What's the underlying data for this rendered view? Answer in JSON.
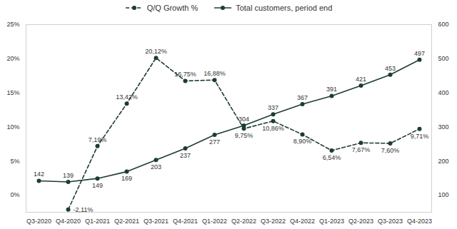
{
  "chart_data": {
    "type": "line",
    "categories": [
      "Q3-2020",
      "Q4-2020",
      "Q1-2021",
      "Q2-2021",
      "Q3-2021",
      "Q4-2021",
      "Q1-2022",
      "Q2-2022",
      "Q3-2022",
      "Q4-2022",
      "Q1-2023",
      "Q2-2023",
      "Q3-2023",
      "Q4-2023"
    ],
    "series": [
      {
        "name": "Q/Q Growth %",
        "color": "#1e3d32",
        "line_style": "dashed",
        "marker": "circle",
        "values": [
          null,
          -2.11,
          7.19,
          13.42,
          20.12,
          16.75,
          16.88,
          9.75,
          10.86,
          8.9,
          6.54,
          7.67,
          7.6,
          9.71
        ],
        "value_labels": [
          null,
          "-2,11%",
          "7,19%",
          "13,42%",
          "20,12%",
          "16,75%",
          "16,88%",
          "9,75%",
          "10,86%",
          "8,90%",
          "6,54%",
          "7,67%",
          "7,60%",
          "9,71%"
        ]
      },
      {
        "name": "Total customers, period end",
        "color": "#1e3d32",
        "line_style": "solid",
        "marker": "circle",
        "axis": "y2",
        "values": [
          142,
          139,
          149,
          169,
          203,
          237,
          277,
          304,
          337,
          367,
          391,
          421,
          453,
          497
        ]
      }
    ],
    "ylim": [
      -2.5,
      25
    ],
    "yticks": [
      {
        "value": 0,
        "label": "0%"
      },
      {
        "value": 5,
        "label": "5%"
      },
      {
        "value": 10,
        "label": "10%"
      },
      {
        "value": 15,
        "label": "15%"
      },
      {
        "value": 20,
        "label": "20%"
      },
      {
        "value": 25,
        "label": "25%"
      }
    ],
    "y2lim": [
      50,
      600
    ],
    "y2ticks": [
      100,
      200,
      300,
      400,
      500,
      600
    ],
    "data_labels": true,
    "legend": "top",
    "grid": false
  }
}
